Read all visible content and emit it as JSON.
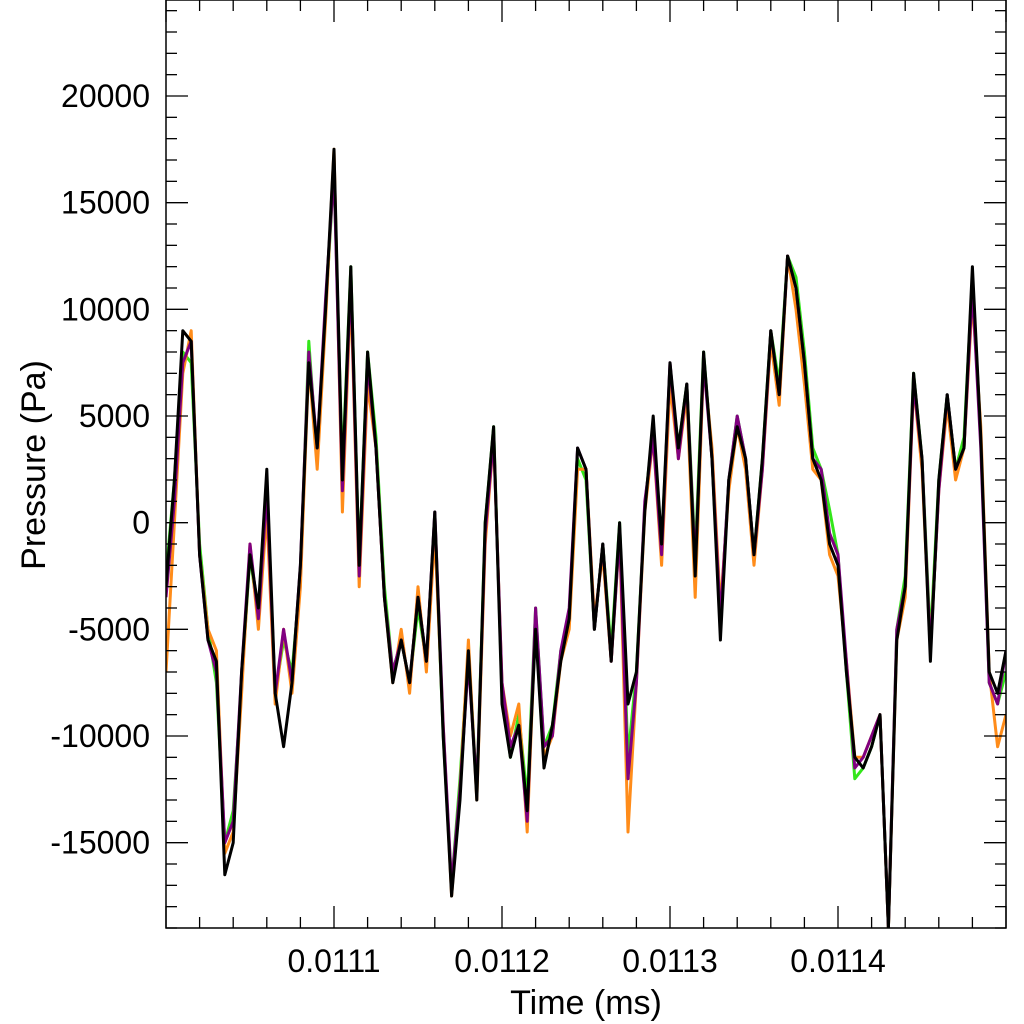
{
  "chart_data": {
    "type": "line",
    "title": "",
    "xlabel": "Time (ms)",
    "ylabel": "Pressure (Pa)",
    "xlim": [
      0.011,
      0.0115
    ],
    "ylim": [
      -19000,
      24500
    ],
    "x_ticks": [
      0.0111,
      0.0112,
      0.0113,
      0.0114
    ],
    "x_tick_labels": [
      "0.0111",
      "0.0112",
      "0.0113",
      "0.0114"
    ],
    "y_ticks": [
      -15000,
      -10000,
      -5000,
      0,
      5000,
      10000,
      15000,
      20000
    ],
    "y_tick_labels": [
      "-15000",
      "-10000",
      "-5000",
      "0",
      "5000",
      "10000",
      "15000",
      "20000"
    ],
    "grid": false,
    "legend": false,
    "x": [
      0.011,
      0.011005,
      0.01101,
      0.011015,
      0.01102,
      0.011025,
      0.01103,
      0.011035,
      0.01104,
      0.011045,
      0.01105,
      0.011055,
      0.01106,
      0.011065,
      0.01107,
      0.011075,
      0.01108,
      0.011085,
      0.01109,
      0.011095,
      0.0111,
      0.011105,
      0.01111,
      0.011115,
      0.01112,
      0.011125,
      0.01113,
      0.011135,
      0.01114,
      0.011145,
      0.01115,
      0.011155,
      0.01116,
      0.011165,
      0.01117,
      0.011175,
      0.01118,
      0.011185,
      0.01119,
      0.011195,
      0.0112,
      0.011205,
      0.01121,
      0.011215,
      0.01122,
      0.011225,
      0.01123,
      0.011235,
      0.01124,
      0.011245,
      0.01125,
      0.011255,
      0.01126,
      0.011265,
      0.01127,
      0.011275,
      0.01128,
      0.011285,
      0.01129,
      0.011295,
      0.0113,
      0.011305,
      0.01131,
      0.011315,
      0.01132,
      0.011325,
      0.01133,
      0.011335,
      0.01134,
      0.011345,
      0.01135,
      0.011355,
      0.01136,
      0.011365,
      0.01137,
      0.011375,
      0.01138,
      0.011385,
      0.01139,
      0.011395,
      0.0114,
      0.011405,
      0.01141,
      0.011415,
      0.01142,
      0.011425,
      0.01143,
      0.011435,
      0.01144,
      0.011445,
      0.01145,
      0.011455,
      0.01146,
      0.011465,
      0.01147,
      0.011475,
      0.01148,
      0.011485,
      0.01149,
      0.011495,
      0.0115
    ],
    "series": [
      {
        "color": "#33e61a",
        "values": [
          -2500,
          2000,
          8000,
          7500,
          -1000,
          -5000,
          -7500,
          -15000,
          -13500,
          -7500,
          -1500,
          -4500,
          1000,
          -8000,
          -5500,
          -7000,
          -2500,
          8500,
          3000,
          10000,
          16500,
          2500,
          12000,
          -2000,
          8000,
          4000,
          -3000,
          -7000,
          -5500,
          -7500,
          -4000,
          -6500,
          200,
          -10000,
          -17000,
          -12000,
          -6000,
          -12500,
          0,
          4500,
          -8000,
          -11000,
          -9000,
          -13000,
          -4000,
          -10500,
          -9500,
          -6000,
          -4500,
          3000,
          2000,
          -5000,
          -1000,
          -6000,
          0,
          -11000,
          -7000,
          800,
          4500,
          -1000,
          7000,
          3500,
          6500,
          -1500,
          8000,
          3000,
          -4500,
          2000,
          5000,
          3000,
          -1500,
          3000,
          9000,
          6500,
          12500,
          11500,
          8000,
          3500,
          2500,
          600,
          -1500,
          -7000,
          -12000,
          -11500,
          -10500,
          -9000,
          -19000,
          -5000,
          -2500,
          7000,
          3000,
          -5500,
          2000,
          6000,
          2500,
          4000,
          11500,
          4000,
          -7500,
          -8500,
          -7000
        ]
      },
      {
        "color": "#ff8c1a",
        "values": [
          -7000,
          0,
          7000,
          9000,
          -1500,
          -5000,
          -6000,
          -15500,
          -14500,
          -8000,
          -1000,
          -5000,
          500,
          -8500,
          -5000,
          -8000,
          -3000,
          7500,
          2500,
          9500,
          17500,
          500,
          11000,
          -3000,
          6500,
          3500,
          -3500,
          -7500,
          -5000,
          -8000,
          -3000,
          -7000,
          -500,
          -9500,
          -17500,
          -12500,
          -5500,
          -13000,
          -1000,
          4000,
          -7500,
          -10000,
          -8500,
          -14500,
          -4500,
          -11000,
          -10000,
          -6500,
          -5000,
          2500,
          2500,
          -4500,
          -1500,
          -6500,
          -500,
          -14500,
          -7500,
          500,
          4000,
          -2000,
          6500,
          3000,
          6000,
          -3500,
          7500,
          3500,
          -4000,
          1500,
          4500,
          2500,
          -2000,
          2500,
          8500,
          5500,
          12500,
          10000,
          6500,
          2500,
          2000,
          -1500,
          -2500,
          -6500,
          -11000,
          -11000,
          -10000,
          -9000,
          -19000,
          -5500,
          -3500,
          6500,
          2500,
          -6000,
          1500,
          5500,
          2000,
          3500,
          10500,
          4500,
          -7000,
          -10500,
          -9000
        ]
      },
      {
        "color": "#800080",
        "values": [
          -3500,
          1000,
          7500,
          8500,
          -1500,
          -5500,
          -7000,
          -15000,
          -14000,
          -7000,
          -1000,
          -4500,
          1500,
          -8000,
          -5000,
          -7500,
          -2000,
          8000,
          3500,
          10500,
          16500,
          1500,
          11500,
          -2500,
          7500,
          3500,
          -3500,
          -7000,
          -5500,
          -7500,
          -3500,
          -6500,
          500,
          -9500,
          -17000,
          -12500,
          -6500,
          -12500,
          -500,
          4000,
          -7500,
          -10500,
          -9500,
          -14000,
          -4000,
          -10500,
          -10000,
          -6000,
          -4000,
          3500,
          2500,
          -5000,
          -1000,
          -6500,
          -500,
          -12000,
          -7500,
          1000,
          4000,
          -1500,
          7500,
          3000,
          6500,
          -2000,
          7500,
          3000,
          -4500,
          2000,
          5000,
          3000,
          -1500,
          2500,
          9000,
          6000,
          12500,
          11000,
          7500,
          3000,
          2500,
          -500,
          -1500,
          -6500,
          -11500,
          -11000,
          -10000,
          -9000,
          -19000,
          -5000,
          -3000,
          6500,
          3000,
          -6000,
          1500,
          6000,
          2500,
          3500,
          11000,
          3500,
          -7500,
          -8500,
          -6000
        ]
      },
      {
        "color": "#000000",
        "values": [
          -3000,
          2000,
          9000,
          8500,
          -1500,
          -5500,
          -6500,
          -16500,
          -15000,
          -7000,
          -1500,
          -4000,
          2500,
          -8000,
          -10500,
          -7500,
          -2000,
          7500,
          3500,
          10000,
          17500,
          2000,
          12000,
          -2000,
          8000,
          3500,
          -3500,
          -7500,
          -5500,
          -7500,
          -3500,
          -6500,
          500,
          -10000,
          -17500,
          -13000,
          -6000,
          -13000,
          0,
          4500,
          -8500,
          -11000,
          -9500,
          -13500,
          -5000,
          -11500,
          -9500,
          -6500,
          -4500,
          3500,
          2500,
          -5000,
          -1000,
          -6500,
          0,
          -8500,
          -7000,
          500,
          5000,
          -1000,
          7500,
          3500,
          6500,
          -2500,
          8000,
          3000,
          -5500,
          2000,
          4500,
          3000,
          -1500,
          3000,
          9000,
          6000,
          12500,
          11000,
          7500,
          3000,
          2000,
          -1000,
          -2000,
          -7000,
          -11000,
          -11500,
          -10500,
          -9000,
          -19000,
          -5500,
          -3000,
          7000,
          3000,
          -6500,
          2000,
          6000,
          2500,
          3500,
          12000,
          4000,
          -7000,
          -8000,
          -6000
        ]
      }
    ]
  }
}
